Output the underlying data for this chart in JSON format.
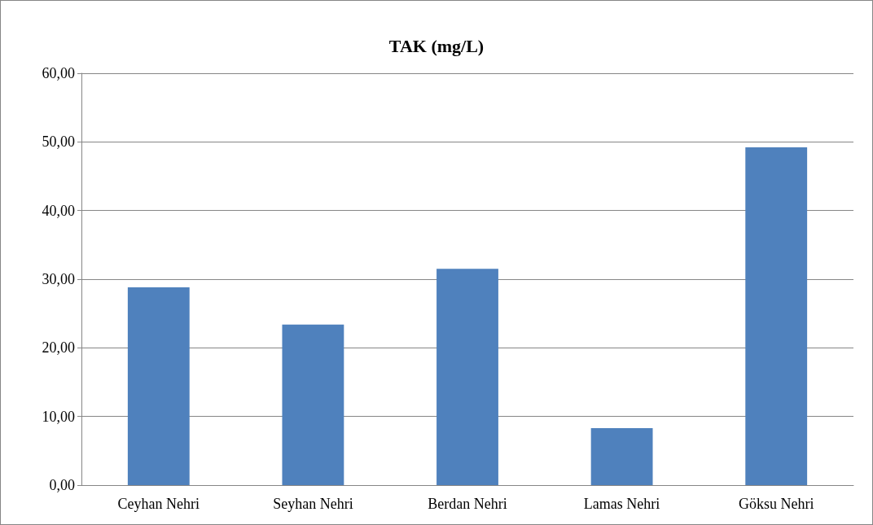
{
  "chart_data": {
    "type": "bar",
    "title": "TAK (mg/L)",
    "categories": [
      "Ceyhan Nehri",
      "Seyhan Nehri",
      "Berdan Nehri",
      "Lamas Nehri",
      "Göksu Nehri"
    ],
    "values": [
      28.8,
      23.4,
      31.5,
      8.3,
      49.2
    ],
    "color": "#4f81bd",
    "ylim": [
      0,
      60
    ],
    "yticks": [
      {
        "value": 0,
        "label": "0,00"
      },
      {
        "value": 10,
        "label": "10,00"
      },
      {
        "value": 20,
        "label": "20,00"
      },
      {
        "value": 30,
        "label": "30,00"
      },
      {
        "value": 40,
        "label": "40,00"
      },
      {
        "value": 50,
        "label": "50,00"
      },
      {
        "value": 60,
        "label": "60,00"
      }
    ],
    "grid": true
  }
}
